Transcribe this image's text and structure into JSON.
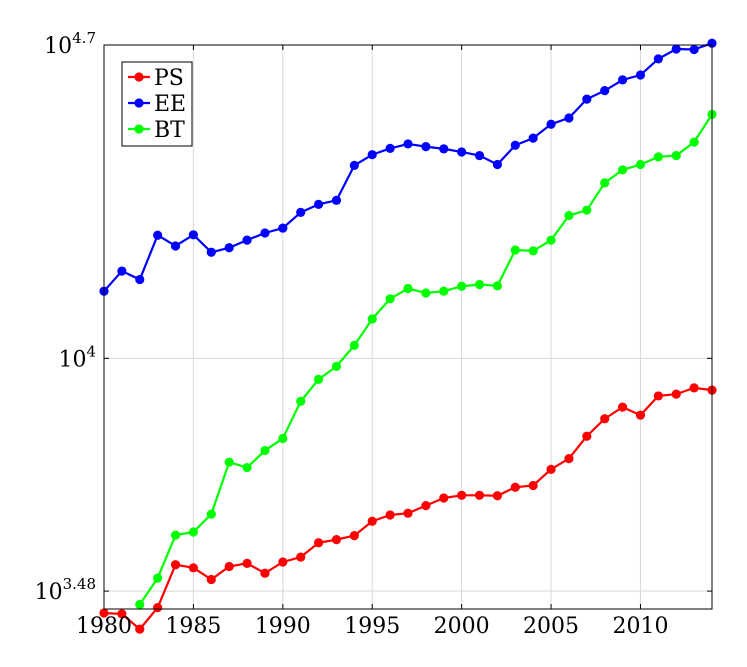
{
  "chart_data": {
    "type": "line",
    "title": "",
    "xlabel": "",
    "ylabel": "",
    "x_axis": {
      "range": [
        1980,
        2014
      ],
      "ticks": [
        1980,
        1985,
        1990,
        1995,
        2000,
        2005,
        2010
      ]
    },
    "y_axis": {
      "scale": "log10",
      "range": [
        3.44,
        4.7
      ],
      "ticks": [
        {
          "value": 3.48,
          "base": "10",
          "exp": "3.48"
        },
        {
          "value": 4.0,
          "base": "10",
          "exp": "4"
        },
        {
          "value": 4.7,
          "base": "10",
          "exp": "4.7"
        }
      ]
    },
    "grid": true,
    "legend": {
      "position": "top-left",
      "entries": [
        "PS",
        "EE",
        "BT"
      ]
    },
    "colors": {
      "PS": "#ff0000",
      "EE": "#0000ff",
      "BT": "#00ff00"
    },
    "series": [
      {
        "name": "PS",
        "color": "#ff0000",
        "points": [
          [
            1980,
            3.431
          ],
          [
            1981,
            3.429
          ],
          [
            1982,
            3.395
          ],
          [
            1983,
            3.443
          ],
          [
            1984,
            3.539
          ],
          [
            1985,
            3.532
          ],
          [
            1986,
            3.506
          ],
          [
            1987,
            3.535
          ],
          [
            1988,
            3.542
          ],
          [
            1989,
            3.52
          ],
          [
            1990,
            3.545
          ],
          [
            1991,
            3.556
          ],
          [
            1992,
            3.588
          ],
          [
            1993,
            3.595
          ],
          [
            1994,
            3.604
          ],
          [
            1995,
            3.636
          ],
          [
            1996,
            3.65
          ],
          [
            1997,
            3.654
          ],
          [
            1998,
            3.671
          ],
          [
            1999,
            3.688
          ],
          [
            2000,
            3.694
          ],
          [
            2001,
            3.694
          ],
          [
            2002,
            3.693
          ],
          [
            2003,
            3.712
          ],
          [
            2004,
            3.716
          ],
          [
            2005,
            3.752
          ],
          [
            2006,
            3.776
          ],
          [
            2007,
            3.826
          ],
          [
            2008,
            3.865
          ],
          [
            2009,
            3.891
          ],
          [
            2010,
            3.873
          ],
          [
            2011,
            3.916
          ],
          [
            2012,
            3.92
          ],
          [
            2013,
            3.934
          ],
          [
            2014,
            3.929
          ]
        ]
      },
      {
        "name": "EE",
        "color": "#0000ff",
        "points": [
          [
            1980,
            4.15
          ],
          [
            1981,
            4.195
          ],
          [
            1982,
            4.176
          ],
          [
            1983,
            4.275
          ],
          [
            1984,
            4.251
          ],
          [
            1985,
            4.276
          ],
          [
            1986,
            4.237
          ],
          [
            1987,
            4.247
          ],
          [
            1988,
            4.264
          ],
          [
            1989,
            4.28
          ],
          [
            1990,
            4.291
          ],
          [
            1991,
            4.326
          ],
          [
            1992,
            4.344
          ],
          [
            1993,
            4.353
          ],
          [
            1994,
            4.431
          ],
          [
            1995,
            4.455
          ],
          [
            1996,
            4.469
          ],
          [
            1997,
            4.479
          ],
          [
            1998,
            4.473
          ],
          [
            1999,
            4.468
          ],
          [
            2000,
            4.461
          ],
          [
            2001,
            4.453
          ],
          [
            2002,
            4.433
          ],
          [
            2003,
            4.476
          ],
          [
            2004,
            4.492
          ],
          [
            2005,
            4.523
          ],
          [
            2006,
            4.537
          ],
          [
            2007,
            4.579
          ],
          [
            2008,
            4.598
          ],
          [
            2009,
            4.622
          ],
          [
            2010,
            4.633
          ],
          [
            2011,
            4.669
          ],
          [
            2012,
            4.691
          ],
          [
            2013,
            4.69
          ],
          [
            2014,
            4.704
          ]
        ]
      },
      {
        "name": "BT",
        "color": "#00ff00",
        "points": [
          [
            1982,
            3.45
          ],
          [
            1983,
            3.509
          ],
          [
            1984,
            3.605
          ],
          [
            1985,
            3.612
          ],
          [
            1986,
            3.652
          ],
          [
            1987,
            3.768
          ],
          [
            1988,
            3.756
          ],
          [
            1989,
            3.794
          ],
          [
            1990,
            3.821
          ],
          [
            1991,
            3.904
          ],
          [
            1992,
            3.953
          ],
          [
            1993,
            3.982
          ],
          [
            1994,
            4.029
          ],
          [
            1995,
            4.088
          ],
          [
            1996,
            4.133
          ],
          [
            1997,
            4.156
          ],
          [
            1998,
            4.146
          ],
          [
            1999,
            4.15
          ],
          [
            2000,
            4.161
          ],
          [
            2001,
            4.165
          ],
          [
            2002,
            4.162
          ],
          [
            2003,
            4.242
          ],
          [
            2004,
            4.24
          ],
          [
            2005,
            4.264
          ],
          [
            2006,
            4.319
          ],
          [
            2007,
            4.331
          ],
          [
            2008,
            4.392
          ],
          [
            2009,
            4.421
          ],
          [
            2010,
            4.433
          ],
          [
            2011,
            4.45
          ],
          [
            2012,
            4.453
          ],
          [
            2013,
            4.483
          ],
          [
            2014,
            4.545
          ]
        ]
      }
    ]
  }
}
